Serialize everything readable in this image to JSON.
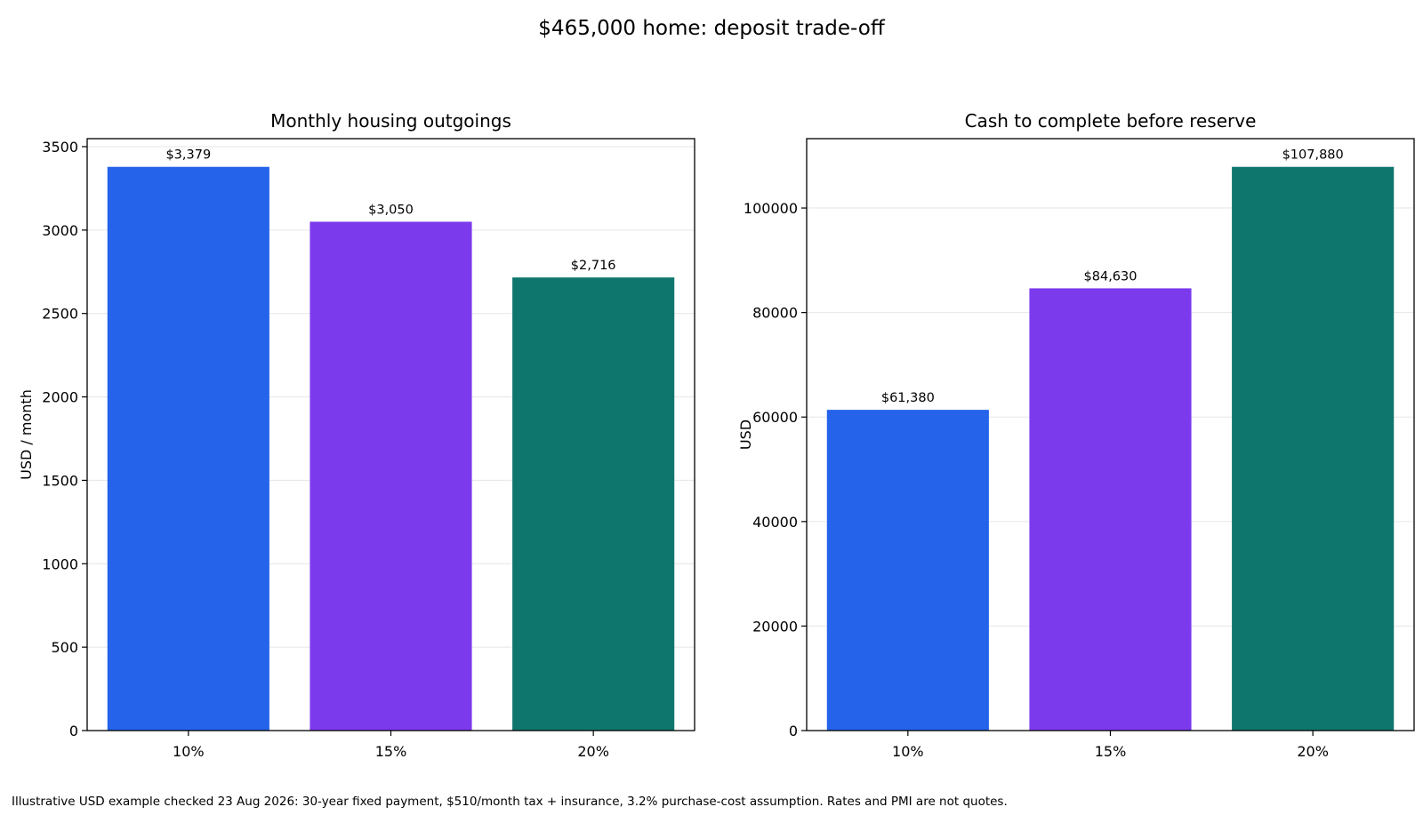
{
  "title": "$465,000 home: deposit trade-off",
  "footnote": "Illustrative USD example checked 23 Aug 2026: 30-year fixed payment, $510/month tax + insurance, 3.2% purchase-cost assumption. Rates and PMI are not quotes.",
  "colors": [
    "#2563eb",
    "#7c3aed",
    "#0f766e"
  ],
  "chart_data": [
    {
      "type": "bar",
      "title": "Monthly housing outgoings",
      "ylabel": "USD / month",
      "xlabel": "",
      "categories": [
        "10%",
        "15%",
        "20%"
      ],
      "values": [
        3379,
        3050,
        2716
      ],
      "data_labels": [
        "$3,379",
        "$3,050",
        "$2,716"
      ],
      "ylim": [
        0,
        3548
      ],
      "yticks": [
        0,
        500,
        1000,
        1500,
        2000,
        2500,
        3000,
        3500
      ],
      "grid": "y"
    },
    {
      "type": "bar",
      "title": "Cash to complete before reserve",
      "ylabel": "USD",
      "xlabel": "",
      "categories": [
        "10%",
        "15%",
        "20%"
      ],
      "values": [
        61380,
        84630,
        107880
      ],
      "data_labels": [
        "$61,380",
        "$84,630",
        "$107,880"
      ],
      "ylim": [
        0,
        113274
      ],
      "yticks": [
        0,
        20000,
        40000,
        60000,
        80000,
        100000
      ],
      "grid": "y"
    }
  ]
}
